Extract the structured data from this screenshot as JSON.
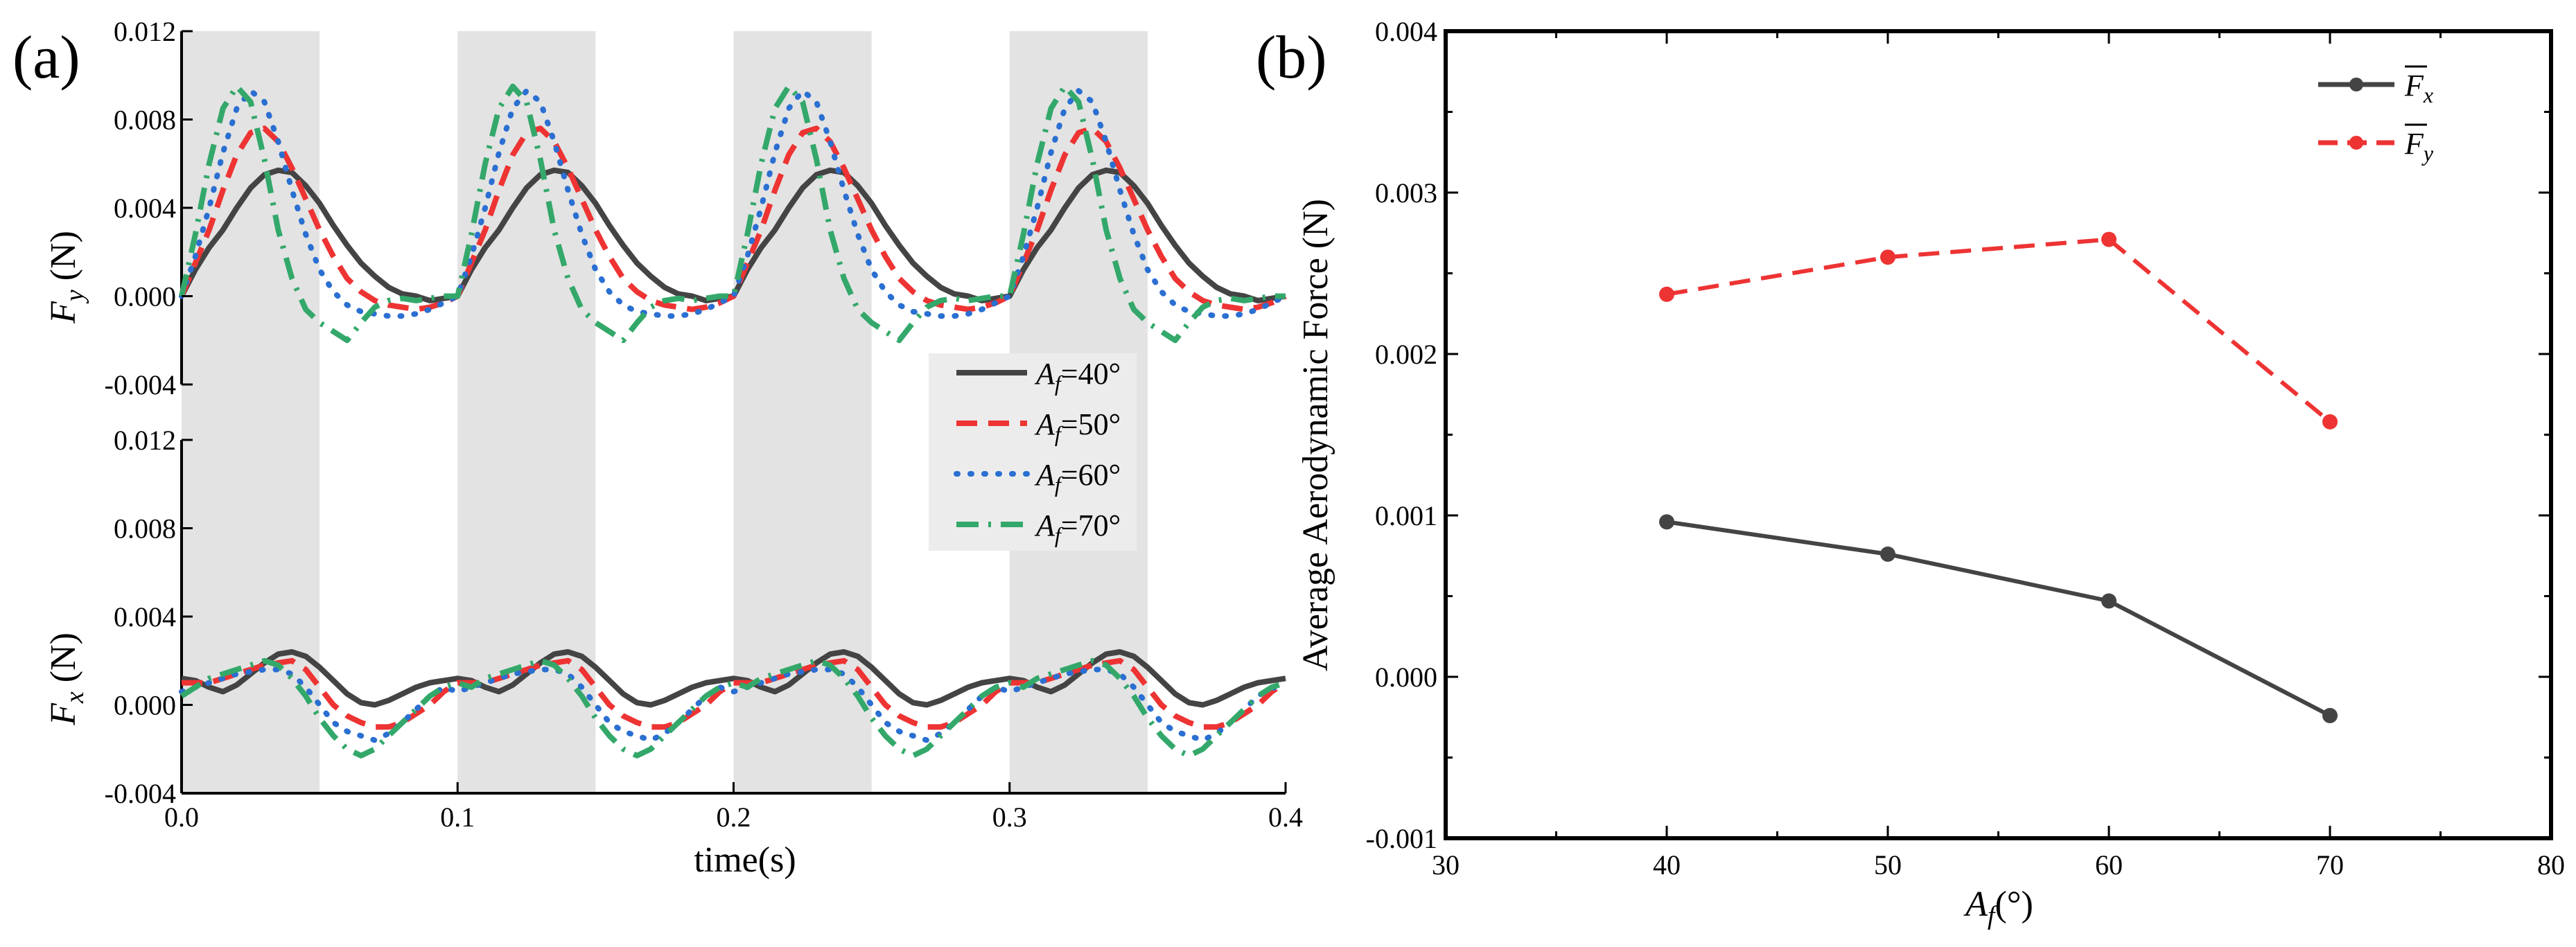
{
  "chart_data": [
    {
      "type": "line",
      "panel_label": "(a)",
      "subplots": [
        {
          "id": "fy",
          "ylabel": "F",
          "ylabel_subscript": "y",
          "ylabel_unit": " (N)",
          "ylim": [
            -0.004,
            0.012
          ],
          "yticks": [
            -0.004,
            0.0,
            0.004,
            0.008,
            0.012
          ],
          "ytick_labels": [
            "-0.004",
            "0.000",
            "0.004",
            "0.008",
            "0.012"
          ],
          "series": [
            {
              "name": "A_f=40°",
              "x": [
                0,
                0.005,
                0.01,
                0.015,
                0.02,
                0.025,
                0.03,
                0.035,
                0.04,
                0.045,
                0.05,
                0.055,
                0.06,
                0.065,
                0.07,
                0.075,
                0.08,
                0.085,
                0.09,
                0.095,
                0.1
              ],
              "values": [
                0.0,
                0.0012,
                0.0022,
                0.003,
                0.004,
                0.0049,
                0.0055,
                0.0057,
                0.0056,
                0.005,
                0.0042,
                0.0032,
                0.0023,
                0.0015,
                0.0009,
                0.0004,
                0.0001,
                0.0,
                -0.0002,
                -0.0001,
                0.0
              ]
            },
            {
              "name": "A_f=50°",
              "x": [
                0,
                0.005,
                0.01,
                0.015,
                0.02,
                0.025,
                0.03,
                0.035,
                0.04,
                0.045,
                0.05,
                0.055,
                0.06,
                0.065,
                0.07,
                0.075,
                0.08,
                0.085,
                0.09,
                0.095,
                0.1
              ],
              "values": [
                0.0,
                0.0015,
                0.003,
                0.0048,
                0.0064,
                0.0074,
                0.0076,
                0.007,
                0.0058,
                0.0044,
                0.003,
                0.0018,
                0.0008,
                0.0002,
                -0.0002,
                -0.0004,
                -0.0005,
                -0.0006,
                -0.0005,
                -0.0003,
                0.0
              ]
            },
            {
              "name": "A_f=60°",
              "x": [
                0,
                0.005,
                0.01,
                0.015,
                0.02,
                0.025,
                0.03,
                0.035,
                0.04,
                0.045,
                0.05,
                0.055,
                0.06,
                0.065,
                0.07,
                0.075,
                0.08,
                0.085,
                0.09,
                0.095,
                0.1
              ],
              "values": [
                0.0,
                0.0018,
                0.004,
                0.0065,
                0.0085,
                0.0093,
                0.0088,
                0.007,
                0.0048,
                0.0028,
                0.0012,
                0.0002,
                -0.0004,
                -0.0007,
                -0.0008,
                -0.0009,
                -0.0009,
                -0.0008,
                -0.0006,
                -0.0003,
                0.0
              ]
            },
            {
              "name": "A_f=70°",
              "x": [
                0,
                0.005,
                0.01,
                0.015,
                0.02,
                0.025,
                0.03,
                0.035,
                0.04,
                0.045,
                0.05,
                0.055,
                0.06,
                0.065,
                0.07,
                0.075,
                0.08,
                0.085,
                0.09,
                0.095,
                0.1
              ],
              "values": [
                0.0,
                0.0028,
                0.006,
                0.0085,
                0.0095,
                0.0088,
                0.0062,
                0.003,
                0.0008,
                -0.0006,
                -0.0012,
                -0.0016,
                -0.002,
                -0.0012,
                -0.0005,
                -0.0002,
                -0.0001,
                -0.0002,
                -0.0001,
                0.0,
                0.0
              ]
            }
          ]
        },
        {
          "id": "fx",
          "ylabel": "F",
          "ylabel_subscript": "x",
          "ylabel_unit": " (N)",
          "ylim": [
            -0.004,
            0.012
          ],
          "yticks": [
            -0.004,
            0.0,
            0.004,
            0.008,
            0.012
          ],
          "ytick_labels": [
            "-0.004",
            "0.000",
            "0.004",
            "0.008",
            "0.012"
          ],
          "series": [
            {
              "name": "A_f=40°",
              "x": [
                0,
                0.005,
                0.01,
                0.015,
                0.02,
                0.025,
                0.03,
                0.035,
                0.04,
                0.045,
                0.05,
                0.055,
                0.06,
                0.065,
                0.07,
                0.075,
                0.08,
                0.085,
                0.09,
                0.095,
                0.1
              ],
              "values": [
                0.0012,
                0.0011,
                0.0008,
                0.0006,
                0.0009,
                0.0014,
                0.0019,
                0.0023,
                0.0024,
                0.0022,
                0.0017,
                0.0011,
                0.0005,
                0.0001,
                0.0,
                0.0002,
                0.0005,
                0.0008,
                0.001,
                0.0011,
                0.0012
              ]
            },
            {
              "name": "A_f=50°",
              "x": [
                0,
                0.005,
                0.01,
                0.015,
                0.02,
                0.025,
                0.03,
                0.035,
                0.04,
                0.045,
                0.05,
                0.055,
                0.06,
                0.065,
                0.07,
                0.075,
                0.08,
                0.085,
                0.09,
                0.095,
                0.1
              ],
              "values": [
                0.001,
                0.001,
                0.001,
                0.0012,
                0.0014,
                0.0016,
                0.0018,
                0.0019,
                0.002,
                0.0016,
                0.0008,
                0.0,
                -0.0005,
                -0.0008,
                -0.001,
                -0.001,
                -0.0008,
                -0.0004,
                0.0,
                0.0006,
                0.001
              ]
            },
            {
              "name": "A_f=60°",
              "x": [
                0,
                0.005,
                0.01,
                0.015,
                0.02,
                0.025,
                0.03,
                0.035,
                0.04,
                0.045,
                0.05,
                0.055,
                0.06,
                0.065,
                0.07,
                0.075,
                0.08,
                0.085,
                0.09,
                0.095,
                0.1
              ],
              "values": [
                0.0006,
                0.0008,
                0.001,
                0.0012,
                0.0014,
                0.0015,
                0.0016,
                0.0016,
                0.0014,
                0.0008,
                0.0,
                -0.0008,
                -0.0012,
                -0.0014,
                -0.0016,
                -0.0013,
                -0.0008,
                -0.0002,
                0.0004,
                0.0008,
                0.0006
              ]
            },
            {
              "name": "A_f=70°",
              "x": [
                0,
                0.005,
                0.01,
                0.015,
                0.02,
                0.025,
                0.03,
                0.035,
                0.04,
                0.045,
                0.05,
                0.055,
                0.06,
                0.065,
                0.07,
                0.075,
                0.08,
                0.085,
                0.09,
                0.095,
                0.1
              ],
              "values": [
                0.0004,
                0.0008,
                0.0012,
                0.0014,
                0.0016,
                0.0018,
                0.002,
                0.0018,
                0.0012,
                0.0004,
                -0.0006,
                -0.0014,
                -0.002,
                -0.0023,
                -0.002,
                -0.0014,
                -0.0008,
                -0.0002,
                0.0004,
                0.0008,
                0.001
              ]
            }
          ]
        }
      ],
      "xlabel": "time(s)",
      "xlim": [
        0.0,
        0.4
      ],
      "xticks": [
        0.0,
        0.1,
        0.2,
        0.3,
        0.4
      ],
      "xtick_labels": [
        "0.0",
        "0.1",
        "0.2",
        "0.3",
        "0.4"
      ],
      "shaded_intervals": [
        [
          0.0,
          0.05
        ],
        [
          0.1,
          0.15
        ],
        [
          0.2,
          0.25
        ],
        [
          0.3,
          0.35
        ]
      ],
      "legend": {
        "position": "right",
        "entries": [
          {
            "label": "A_f=40°",
            "style": "solid",
            "color": "#444444"
          },
          {
            "label": "A_f=50°",
            "style": "dashed",
            "color": "#ee3333"
          },
          {
            "label": "A_f=60°",
            "style": "dotted",
            "color": "#2a6fd1"
          },
          {
            "label": "A_f=70°",
            "style": "dashdot",
            "color": "#33a86a"
          }
        ]
      }
    },
    {
      "type": "line",
      "panel_label": "(b)",
      "xlabel": "A_f(°)",
      "ylabel": "Average Aerodynamic Force (N)",
      "xlim": [
        30,
        80
      ],
      "xticks": [
        30,
        40,
        50,
        60,
        70,
        80
      ],
      "xtick_labels": [
        "30",
        "40",
        "50",
        "60",
        "70",
        "80"
      ],
      "ylim": [
        -0.001,
        0.004
      ],
      "yticks": [
        -0.001,
        0.0,
        0.001,
        0.002,
        0.003,
        0.004
      ],
      "ytick_labels": [
        "-0.001",
        "0.000",
        "0.001",
        "0.002",
        "0.003",
        "0.004"
      ],
      "categories": [
        40,
        50,
        60,
        70
      ],
      "series": [
        {
          "name": "F̄x",
          "label_main": "F",
          "label_sub": "x",
          "style": "solid",
          "color": "#444444",
          "values": [
            0.00096,
            0.00076,
            0.00047,
            -0.00024
          ]
        },
        {
          "name": "F̄y",
          "label_main": "F",
          "label_sub": "y",
          "style": "dashed",
          "color": "#ee3333",
          "values": [
            0.00237,
            0.0026,
            0.00271,
            0.00158
          ]
        }
      ],
      "legend": {
        "position": "top-right"
      }
    }
  ]
}
